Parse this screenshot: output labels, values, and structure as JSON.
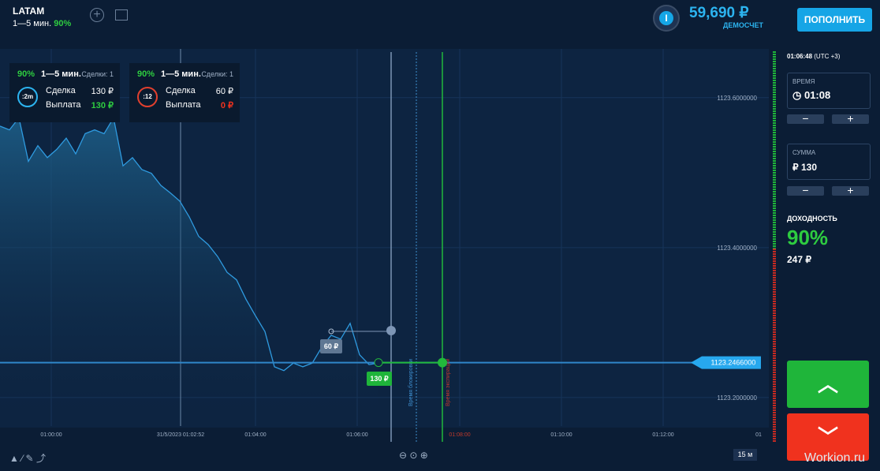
{
  "header": {
    "asset": "LATAM",
    "asset_period": "1—5 мин.",
    "asset_payout": "90%",
    "balance": "59,690 ₽",
    "account_type": "ДЕМОСЧЕТ",
    "deposit_button": "ПОПОЛНИТЬ"
  },
  "trades": [
    {
      "payout": "90%",
      "period": "1—5 мин.",
      "deals": "Сделки: 1",
      "timer": ":2m",
      "deal_label": "Сделка",
      "deal_amount": "130 ₽",
      "payout_label": "Выплата",
      "payout_amount": "130 ₽"
    },
    {
      "payout": "90%",
      "period": "1—5 мин.",
      "deals": "Сделки: 1",
      "timer": ":12",
      "deal_label": "Сделка",
      "deal_amount": "60 ₽",
      "payout_label": "Выплата",
      "payout_amount": "0 ₽"
    }
  ],
  "chart": {
    "type": "line",
    "ylim": [
      1123.162,
      1123.665
    ],
    "yticks": [
      {
        "value": 1123.6,
        "label": "1123.6000000"
      },
      {
        "value": 1123.4,
        "label": "1123.4000000"
      },
      {
        "value": 1123.2,
        "label": "1123.2000000"
      }
    ],
    "current_price": {
      "value": 1123.2466,
      "label": "1123.2466000"
    },
    "values": [
      1123.562,
      1123.557,
      1123.573,
      1123.515,
      1123.536,
      1123.52,
      1123.531,
      1123.546,
      1123.525,
      1123.552,
      1123.557,
      1123.552,
      1123.573,
      1123.509,
      1123.52,
      1123.504,
      1123.499,
      1123.483,
      1123.473,
      1123.462,
      1123.441,
      1123.415,
      1123.404,
      1123.388,
      1123.367,
      1123.357,
      1123.331,
      1123.309,
      1123.288,
      1123.241,
      1123.236,
      1123.246,
      1123.241,
      1123.246,
      1123.267,
      1123.283,
      1123.278,
      1123.299,
      1123.257,
      1123.244,
      1123.246
    ],
    "x_labels": [
      "01:00:00",
      "01:04:00",
      "01:06:00",
      "01:08:00",
      "01:10:00",
      "01:12:00",
      "01"
    ],
    "crosshair_label": "31/5/2023 01:02:52",
    "lock_label": "Время блокировки",
    "expiry_label": "Время экспирации",
    "markers": [
      "60 ₽",
      "130 ₽"
    ],
    "timeframe": "15 м"
  },
  "panel": {
    "time": "01:06:48",
    "timezone": "(UTC +3)",
    "duration_label": "ВРЕМЯ",
    "duration": "01:08",
    "amount_label": "СУММА",
    "amount": "₽ 130",
    "profit_label": "ДОХОДНОСТЬ",
    "profit_percent": "90%",
    "profit_amount": "247 ₽"
  },
  "watermark": "Workion.ru"
}
